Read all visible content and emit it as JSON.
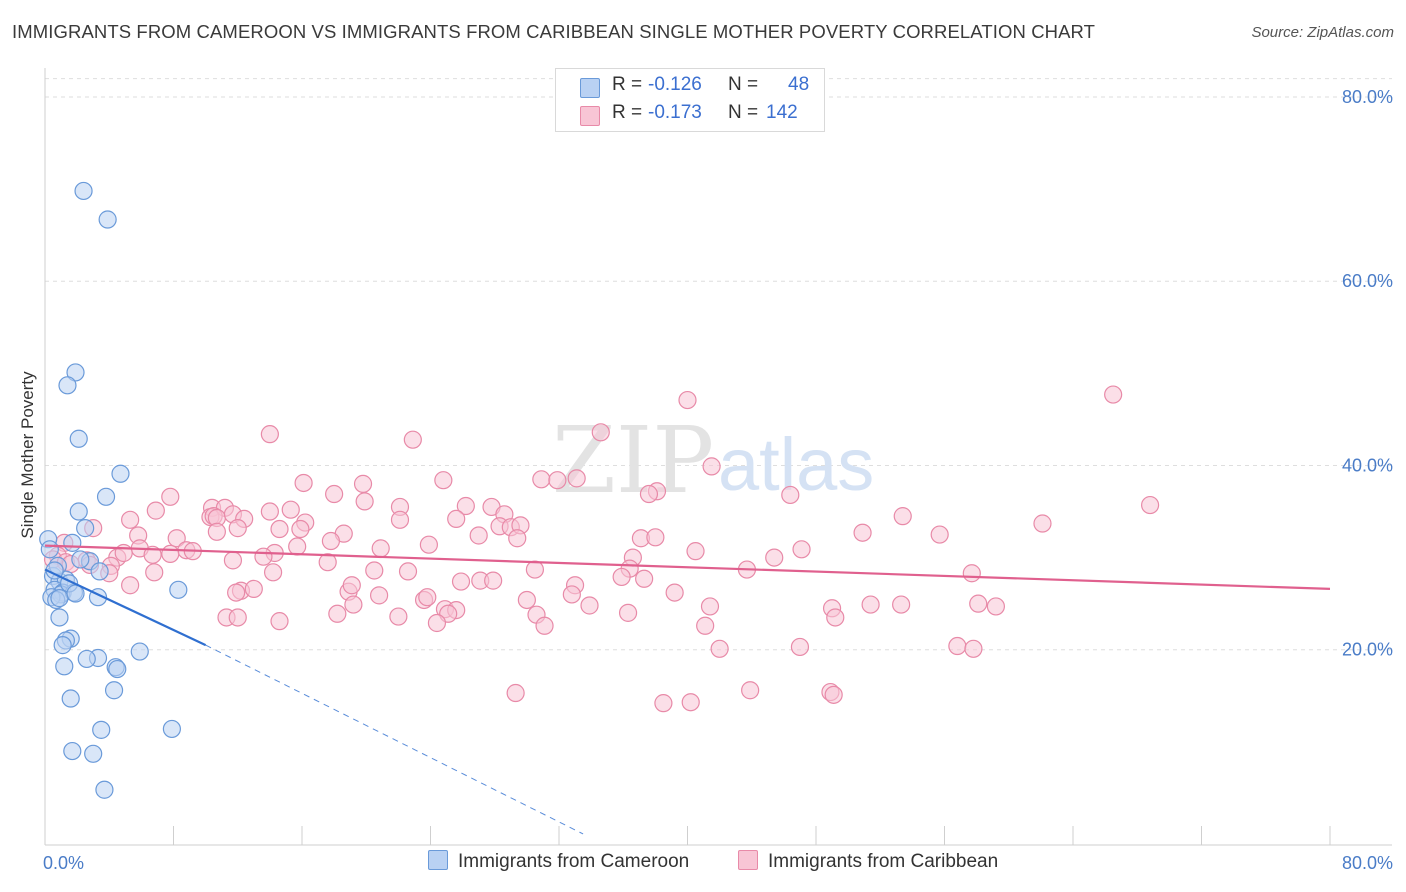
{
  "title": "IMMIGRANTS FROM CAMEROON VS IMMIGRANTS FROM CARIBBEAN SINGLE MOTHER POVERTY CORRELATION CHART",
  "source": "Source: ZipAtlas.com",
  "watermark": {
    "zip": "ZIP",
    "atlas": "atlas"
  },
  "legend": {
    "r_label": "R =",
    "n_label": "N =",
    "rows": [
      {
        "r": "-0.126",
        "n": "48"
      },
      {
        "r": "-0.173",
        "n": "142"
      }
    ]
  },
  "colors": {
    "cameroon_fill": "#b9d1f3",
    "cameroon_stroke": "#6a9ad9",
    "cameroon_line": "#2f6fd0",
    "caribbean_fill": "#f8c5d5",
    "caribbean_stroke": "#e88aa8",
    "caribbean_line": "#e0608e",
    "tick_text": "#4a7cc7",
    "grid": "#dedede"
  },
  "chart_data": {
    "type": "scatter",
    "title": "IMMIGRANTS FROM CAMEROON VS IMMIGRANTS FROM CARIBBEAN SINGLE MOTHER POVERTY CORRELATION CHART",
    "xlabel": "",
    "ylabel": "Single Mother Poverty",
    "xlim": [
      0,
      80
    ],
    "ylim": [
      0,
      82
    ],
    "x_tick_labels": [
      "0.0%",
      "80.0%"
    ],
    "y_ticks": [
      20,
      40,
      60,
      80
    ],
    "y_tick_labels": [
      "20.0%",
      "40.0%",
      "60.0%",
      "80.0%"
    ],
    "grid": "horizontal dashed",
    "legend_position": "top-center",
    "series": [
      {
        "name": "Immigrants from Cameroon",
        "r": -0.126,
        "n": 48,
        "trend": {
          "x": [
            0,
            10.0
          ],
          "y": [
            28.7,
            20.5
          ]
        },
        "trend_extension": {
          "x": [
            10.0,
            33.5
          ],
          "y": [
            20.5,
            0.0
          ]
        },
        "points": [
          [
            2.4,
            69.8
          ],
          [
            3.9,
            66.7
          ],
          [
            1.9,
            50.1
          ],
          [
            1.4,
            48.7
          ],
          [
            2.1,
            42.9
          ],
          [
            4.7,
            39.1
          ],
          [
            3.8,
            36.6
          ],
          [
            2.1,
            35.0
          ],
          [
            2.5,
            33.2
          ],
          [
            0.2,
            32.0
          ],
          [
            1.7,
            31.6
          ],
          [
            0.3,
            30.9
          ],
          [
            2.8,
            29.6
          ],
          [
            3.4,
            28.5
          ],
          [
            0.5,
            28.0
          ],
          [
            0.9,
            27.4
          ],
          [
            1.3,
            27.6
          ],
          [
            0.6,
            26.5
          ],
          [
            1.1,
            26.2
          ],
          [
            1.0,
            26.0
          ],
          [
            1.8,
            26.2
          ],
          [
            0.4,
            25.7
          ],
          [
            0.7,
            25.4
          ],
          [
            0.9,
            25.6
          ],
          [
            3.3,
            25.7
          ],
          [
            8.3,
            26.5
          ],
          [
            0.9,
            23.5
          ],
          [
            1.6,
            21.2
          ],
          [
            1.3,
            21.0
          ],
          [
            1.1,
            20.5
          ],
          [
            5.9,
            19.8
          ],
          [
            3.3,
            19.1
          ],
          [
            2.6,
            19.0
          ],
          [
            1.2,
            18.2
          ],
          [
            4.4,
            18.1
          ],
          [
            4.5,
            17.9
          ],
          [
            4.3,
            15.6
          ],
          [
            1.6,
            14.7
          ],
          [
            3.5,
            11.3
          ],
          [
            7.9,
            11.4
          ],
          [
            1.7,
            9.0
          ],
          [
            3.0,
            8.7
          ],
          [
            3.7,
            4.8
          ],
          [
            2.2,
            29.8
          ],
          [
            1.5,
            27.2
          ],
          [
            0.8,
            29.1
          ],
          [
            1.9,
            26.1
          ],
          [
            0.6,
            28.6
          ]
        ]
      },
      {
        "name": "Immigrants from Caribbean",
        "r": -0.173,
        "n": 142,
        "trend": {
          "x": [
            0,
            80
          ],
          "y": [
            31.3,
            26.6
          ]
        },
        "points": [
          [
            66.5,
            47.7
          ],
          [
            40.0,
            47.1
          ],
          [
            14.0,
            43.4
          ],
          [
            22.9,
            42.8
          ],
          [
            34.6,
            43.6
          ],
          [
            41.5,
            39.9
          ],
          [
            16.1,
            38.1
          ],
          [
            24.8,
            38.4
          ],
          [
            30.9,
            38.5
          ],
          [
            31.9,
            38.4
          ],
          [
            33.1,
            38.6
          ],
          [
            19.8,
            38.0
          ],
          [
            38.1,
            37.2
          ],
          [
            37.6,
            36.9
          ],
          [
            46.4,
            36.8
          ],
          [
            7.8,
            36.6
          ],
          [
            18.0,
            36.9
          ],
          [
            19.9,
            36.1
          ],
          [
            6.9,
            35.1
          ],
          [
            10.4,
            35.4
          ],
          [
            11.2,
            35.4
          ],
          [
            14.0,
            35.0
          ],
          [
            15.3,
            35.2
          ],
          [
            22.1,
            35.5
          ],
          [
            26.2,
            35.6
          ],
          [
            27.8,
            35.5
          ],
          [
            28.6,
            34.7
          ],
          [
            68.8,
            35.7
          ],
          [
            10.3,
            34.4
          ],
          [
            10.5,
            34.5
          ],
          [
            10.7,
            34.3
          ],
          [
            11.7,
            34.7
          ],
          [
            5.3,
            34.1
          ],
          [
            12.4,
            34.2
          ],
          [
            16.2,
            33.8
          ],
          [
            22.1,
            34.1
          ],
          [
            25.6,
            34.2
          ],
          [
            28.3,
            33.4
          ],
          [
            29.0,
            33.3
          ],
          [
            29.6,
            33.5
          ],
          [
            12.0,
            33.2
          ],
          [
            14.6,
            33.1
          ],
          [
            15.9,
            33.1
          ],
          [
            3.0,
            33.2
          ],
          [
            5.8,
            32.4
          ],
          [
            8.2,
            32.1
          ],
          [
            10.7,
            32.8
          ],
          [
            18.6,
            32.6
          ],
          [
            27.0,
            32.4
          ],
          [
            29.4,
            32.1
          ],
          [
            37.1,
            32.1
          ],
          [
            50.9,
            32.7
          ],
          [
            55.7,
            32.5
          ],
          [
            62.1,
            33.7
          ],
          [
            1.2,
            31.6
          ],
          [
            17.8,
            31.8
          ],
          [
            20.9,
            31.0
          ],
          [
            23.9,
            31.4
          ],
          [
            15.7,
            31.2
          ],
          [
            5.9,
            31.0
          ],
          [
            6.7,
            30.3
          ],
          [
            8.8,
            30.8
          ],
          [
            14.3,
            30.5
          ],
          [
            13.6,
            30.1
          ],
          [
            9.2,
            30.7
          ],
          [
            11.7,
            29.7
          ],
          [
            4.5,
            30.0
          ],
          [
            4.9,
            30.5
          ],
          [
            7.8,
            30.4
          ],
          [
            2.6,
            29.7
          ],
          [
            0.8,
            30.2
          ],
          [
            0.5,
            29.8
          ],
          [
            1.3,
            29.5
          ],
          [
            2.8,
            29.2
          ],
          [
            1.6,
            29.3
          ],
          [
            36.6,
            30.0
          ],
          [
            40.5,
            30.7
          ],
          [
            45.4,
            30.0
          ],
          [
            47.1,
            30.9
          ],
          [
            43.7,
            28.7
          ],
          [
            17.6,
            29.5
          ],
          [
            30.5,
            28.7
          ],
          [
            36.4,
            28.8
          ],
          [
            4.1,
            29.1
          ],
          [
            4.0,
            28.3
          ],
          [
            6.8,
            28.4
          ],
          [
            14.2,
            28.4
          ],
          [
            20.5,
            28.6
          ],
          [
            22.6,
            28.5
          ],
          [
            35.9,
            27.9
          ],
          [
            37.3,
            27.7
          ],
          [
            57.7,
            28.3
          ],
          [
            5.3,
            27.0
          ],
          [
            12.2,
            26.4
          ],
          [
            11.9,
            26.2
          ],
          [
            18.9,
            26.3
          ],
          [
            19.1,
            27.0
          ],
          [
            25.9,
            27.4
          ],
          [
            27.1,
            27.5
          ],
          [
            27.9,
            27.5
          ],
          [
            33.0,
            27.0
          ],
          [
            20.8,
            25.9
          ],
          [
            23.6,
            25.4
          ],
          [
            23.8,
            25.7
          ],
          [
            30.0,
            25.4
          ],
          [
            32.8,
            26.0
          ],
          [
            33.9,
            24.8
          ],
          [
            36.3,
            24.0
          ],
          [
            39.2,
            26.2
          ],
          [
            19.2,
            24.9
          ],
          [
            24.9,
            24.4
          ],
          [
            25.6,
            24.3
          ],
          [
            30.6,
            23.8
          ],
          [
            49.0,
            24.5
          ],
          [
            51.4,
            24.9
          ],
          [
            53.3,
            24.9
          ],
          [
            59.2,
            24.7
          ],
          [
            11.3,
            23.5
          ],
          [
            18.2,
            23.9
          ],
          [
            22.0,
            23.6
          ],
          [
            25.1,
            23.9
          ],
          [
            41.4,
            24.7
          ],
          [
            24.4,
            22.9
          ],
          [
            12.0,
            23.5
          ],
          [
            31.1,
            22.6
          ],
          [
            41.1,
            22.6
          ],
          [
            49.2,
            23.5
          ],
          [
            42.0,
            20.1
          ],
          [
            47.0,
            20.3
          ],
          [
            56.8,
            20.4
          ],
          [
            57.8,
            20.1
          ],
          [
            14.6,
            23.1
          ],
          [
            29.3,
            15.3
          ],
          [
            38.5,
            14.2
          ],
          [
            40.2,
            14.3
          ],
          [
            43.9,
            15.6
          ],
          [
            48.9,
            15.4
          ],
          [
            49.1,
            15.1
          ],
          [
            53.4,
            34.5
          ],
          [
            38.0,
            32.2
          ],
          [
            58.1,
            25.0
          ],
          [
            13.0,
            26.6
          ]
        ]
      }
    ]
  },
  "bottom_legend": [
    "Immigrants from Cameroon",
    "Immigrants from Caribbean"
  ]
}
